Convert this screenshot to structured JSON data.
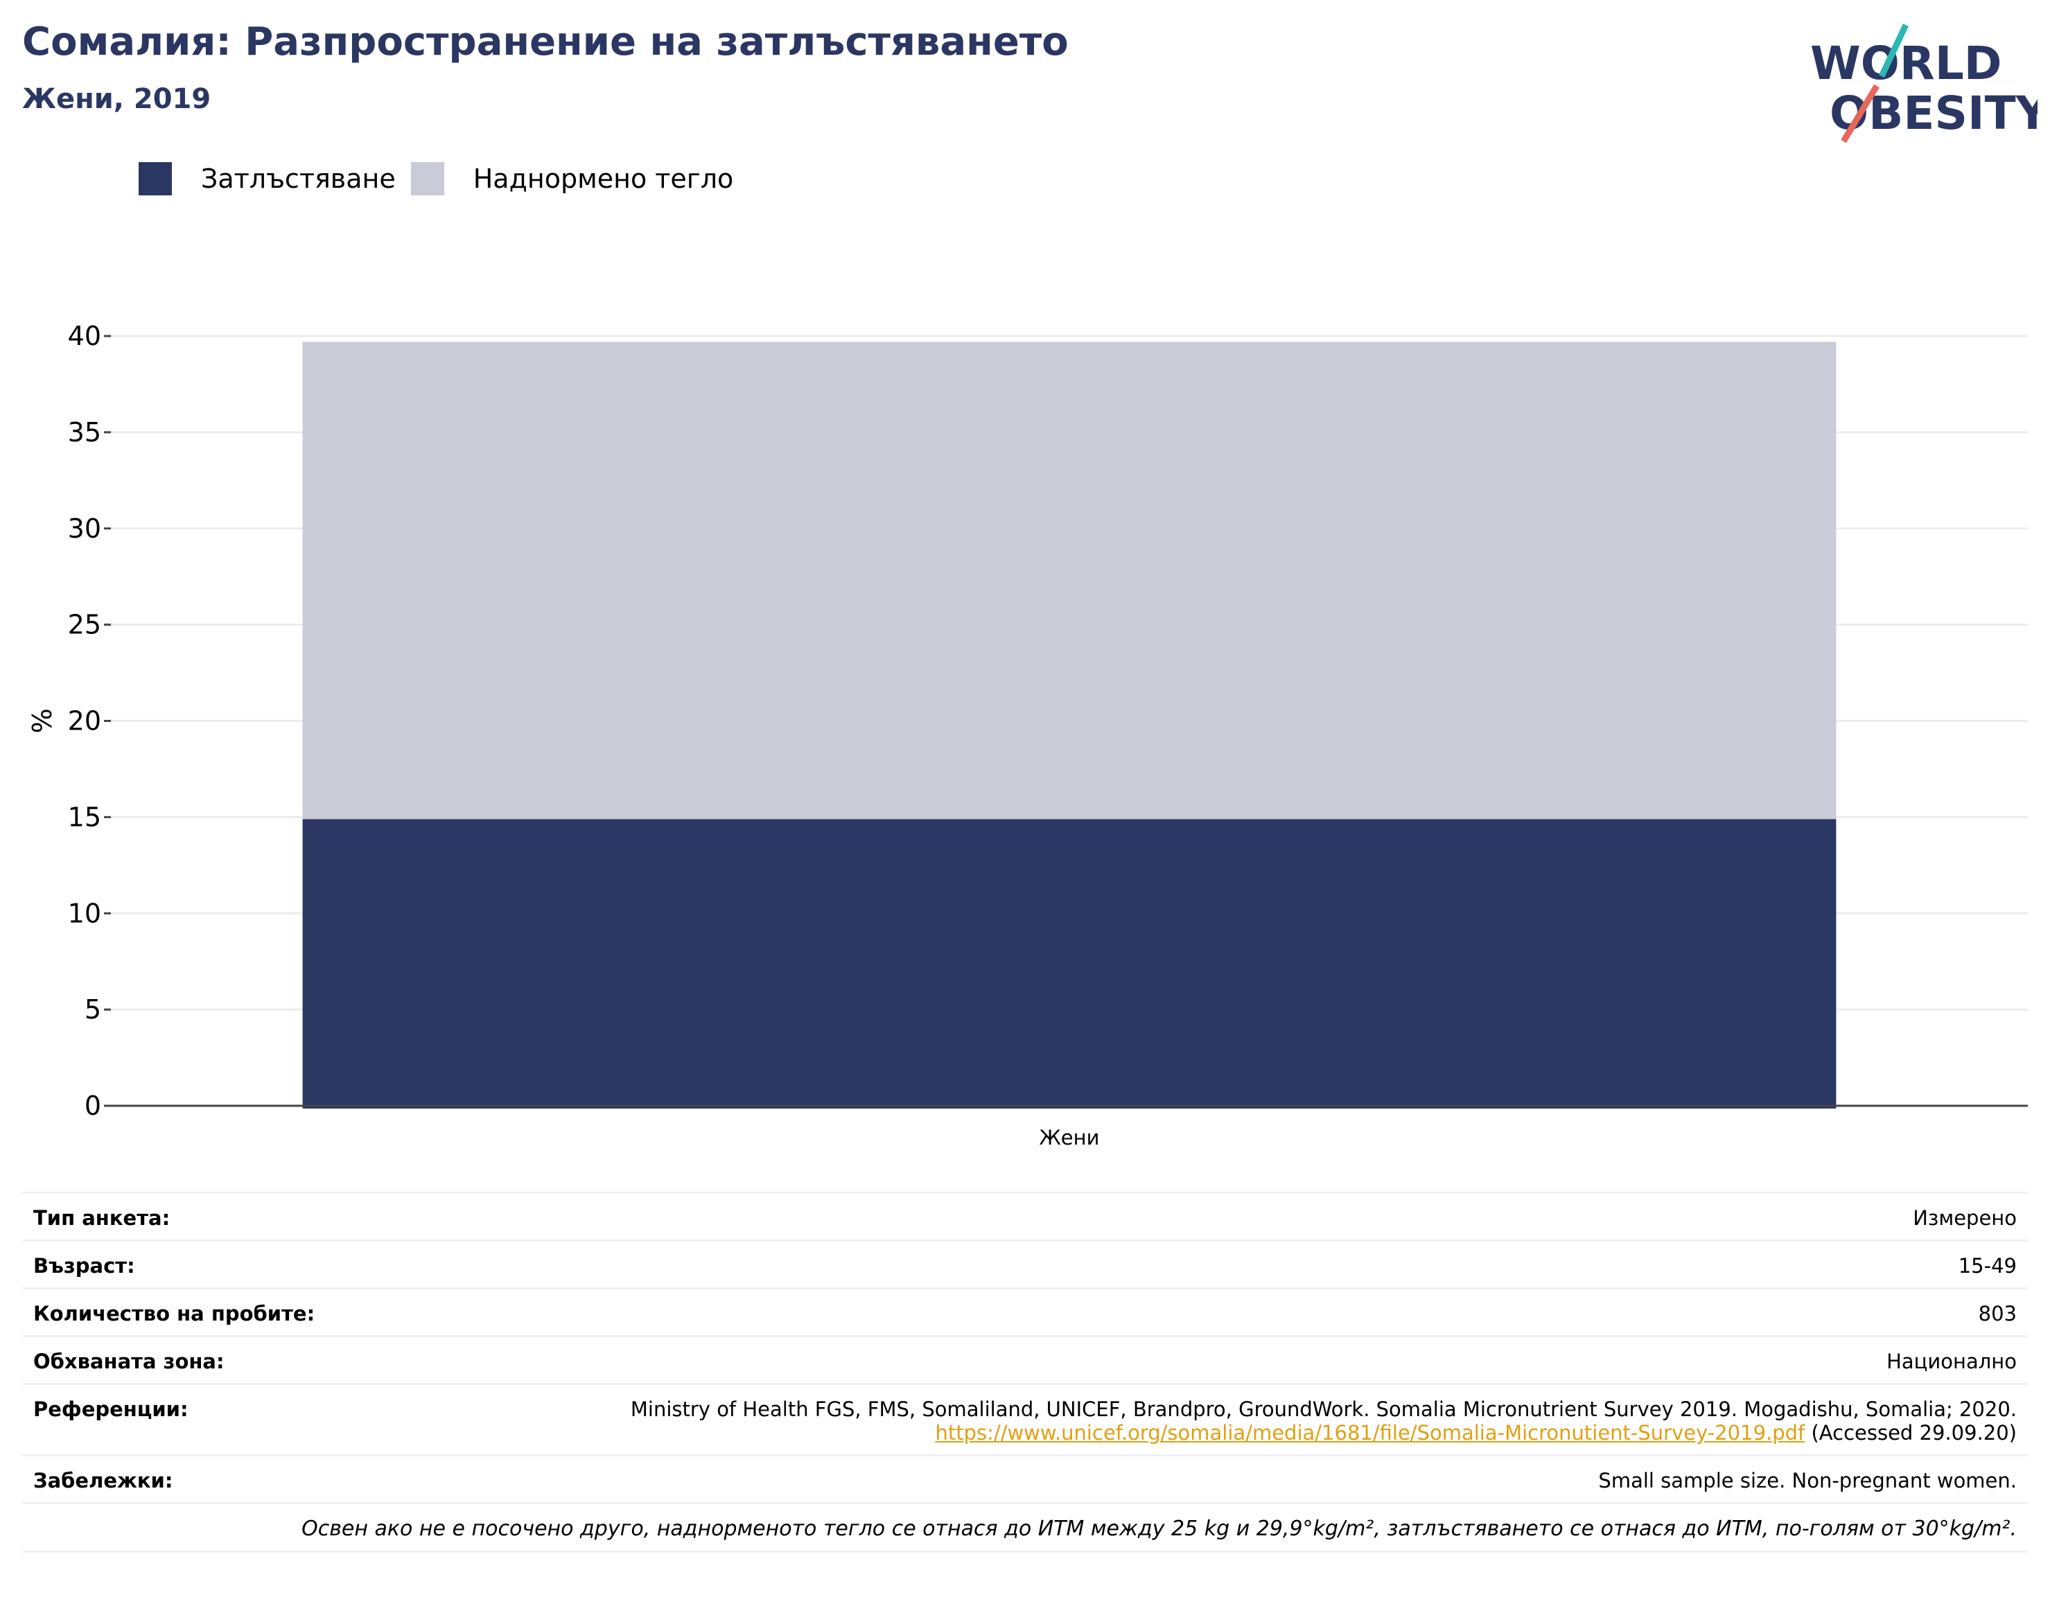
{
  "header": {
    "title": "Сомалия: Разпространение на затлъстяването",
    "subtitle": "Жени, 2019",
    "logo_line1": "WORLD",
    "logo_line2": "OBESITY"
  },
  "legend": [
    {
      "label": "Затлъстяване",
      "color": "#2b3763"
    },
    {
      "label": "Наднормено тегло",
      "color": "#c9cbd7"
    }
  ],
  "chart_data": {
    "type": "bar",
    "stacked": true,
    "categories": [
      "Жени"
    ],
    "series": [
      {
        "name": "Затлъстяване",
        "values": [
          14.9
        ],
        "color": "#2b3763"
      },
      {
        "name": "Наднормено тегло",
        "values": [
          24.8
        ],
        "color": "#c9cbd7"
      }
    ],
    "ylabel": "%",
    "xlabel": "",
    "ylim": [
      0,
      40
    ],
    "yticks": [
      0,
      5,
      10,
      15,
      20,
      25,
      30,
      35,
      40
    ],
    "grid": true,
    "legend_position": "top-left"
  },
  "metadata": {
    "survey_type": {
      "label": "Тип анкета:",
      "value": "Измерено"
    },
    "age": {
      "label": "Възраст:",
      "value": "15-49"
    },
    "sample_size": {
      "label": "Количество на пробите:",
      "value": "803"
    },
    "area": {
      "label": "Обхваната зона:",
      "value": "Национално"
    },
    "references": {
      "label": "Референции:",
      "line1": "Ministry of Health FGS, FMS, Somaliland, UNICEF, Brandpro, GroundWork. Somalia Micronutrient Survey 2019. Mogadishu, Somalia; 2020.",
      "link": "https://www.unicef.org/somalia/media/1681/file/Somalia-Micronutient-Survey-2019.pdf",
      "accessed": " (Accessed 29.09.20)"
    },
    "notes": {
      "label": "Забележки:",
      "value": "Small sample size. Non-pregnant women."
    },
    "footnote": "Освен ако не е посочено друго, наднорменото тегло се отнася до ИТМ между 25 kg и 29,9°kg/m², затлъстяването се отнася до ИТМ, по-голям от 30°kg/m²."
  }
}
